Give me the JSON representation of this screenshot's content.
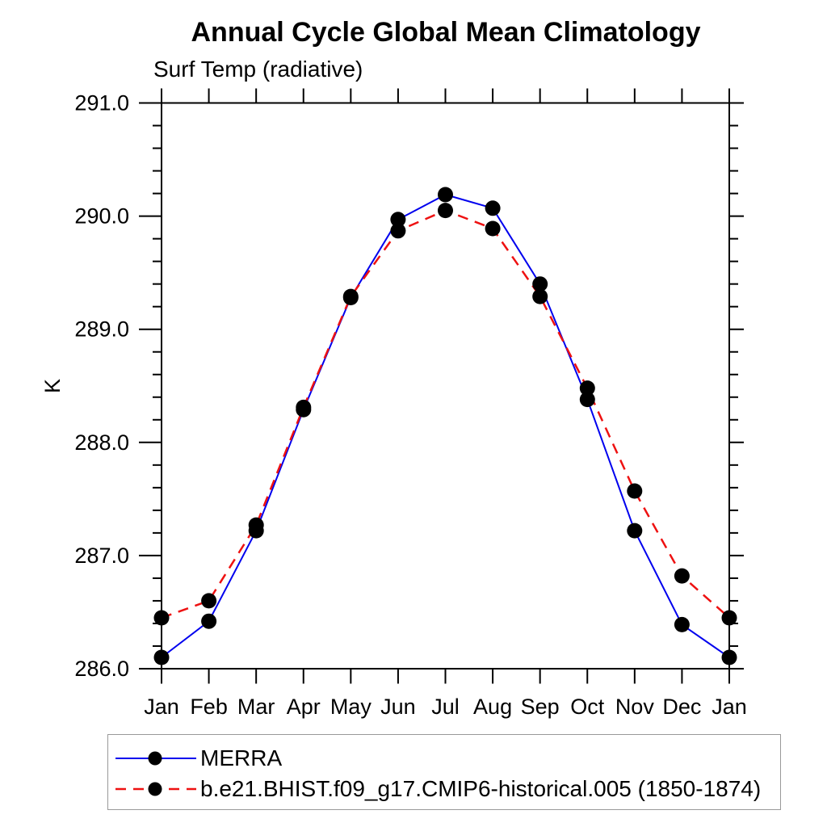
{
  "page": {
    "background": "#ffffff"
  },
  "chart_data": {
    "type": "line",
    "title": "Annual Cycle Global Mean Climatology",
    "subtitle": "Surf Temp (radiative)",
    "xlabel": "",
    "ylabel": "K",
    "ylim": [
      286.0,
      291.0
    ],
    "ytick_labels": [
      "286.0",
      "287.0",
      "288.0",
      "289.0",
      "290.0",
      "291.0"
    ],
    "ytick_major_step": 1.0,
    "ytick_minor_step": 0.2,
    "grid": false,
    "legend_position": "bottom-left-box",
    "categories": [
      "Jan",
      "Feb",
      "Mar",
      "Apr",
      "May",
      "Jun",
      "Jul",
      "Aug",
      "Sep",
      "Oct",
      "Nov",
      "Dec",
      "Jan"
    ],
    "series": [
      {
        "name": "MERRA",
        "color": "#0000ee",
        "line_style": "solid",
        "marker": "filled-circle",
        "marker_color": "#000000",
        "values": [
          286.1,
          286.42,
          287.22,
          288.29,
          289.28,
          289.97,
          290.19,
          290.07,
          289.4,
          288.38,
          287.22,
          286.39,
          286.1
        ]
      },
      {
        "name": "b.e21.BHIST.f09_g17.CMIP6-historical.005 (1850-1874)",
        "color": "#ee1111",
        "line_style": "dashed",
        "marker": "filled-circle",
        "marker_color": "#000000",
        "values": [
          286.45,
          286.6,
          287.27,
          288.31,
          289.29,
          289.87,
          290.05,
          289.89,
          289.29,
          288.48,
          287.57,
          286.82,
          286.45
        ]
      }
    ],
    "axis_color": "#000000",
    "text_color": "#000000"
  }
}
